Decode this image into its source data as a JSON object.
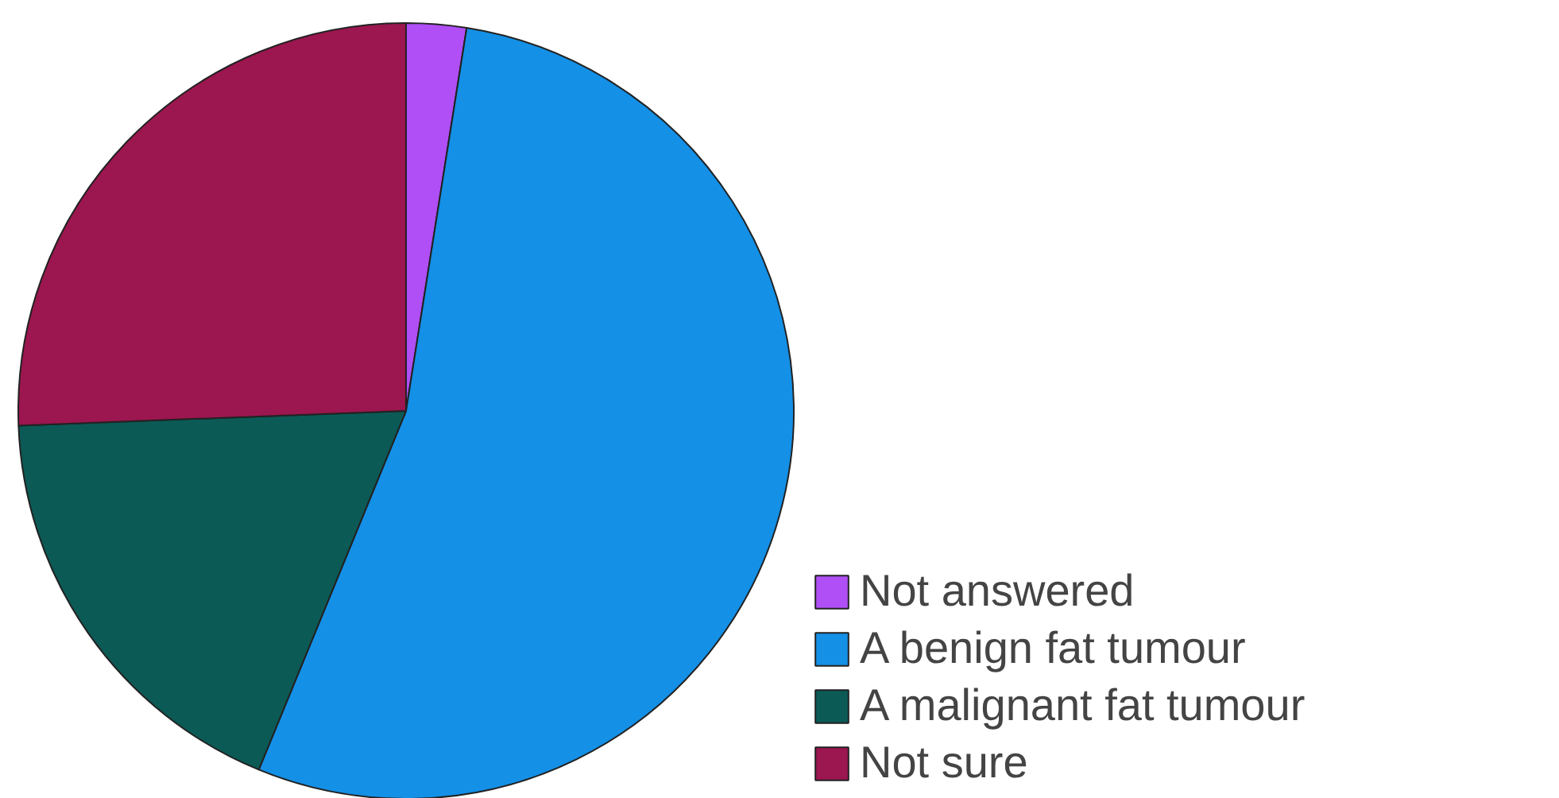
{
  "chart_data": {
    "type": "pie",
    "categories": [
      "Not answered",
      "A benign fat tumour",
      "A malignant fat tumour",
      "Not sure"
    ],
    "values": [
      2.5,
      53.7,
      18.2,
      25.6
    ],
    "colors": [
      "#b04ff5",
      "#1490e6",
      "#0b5a56",
      "#9c164f"
    ],
    "legend": "bottom right"
  }
}
